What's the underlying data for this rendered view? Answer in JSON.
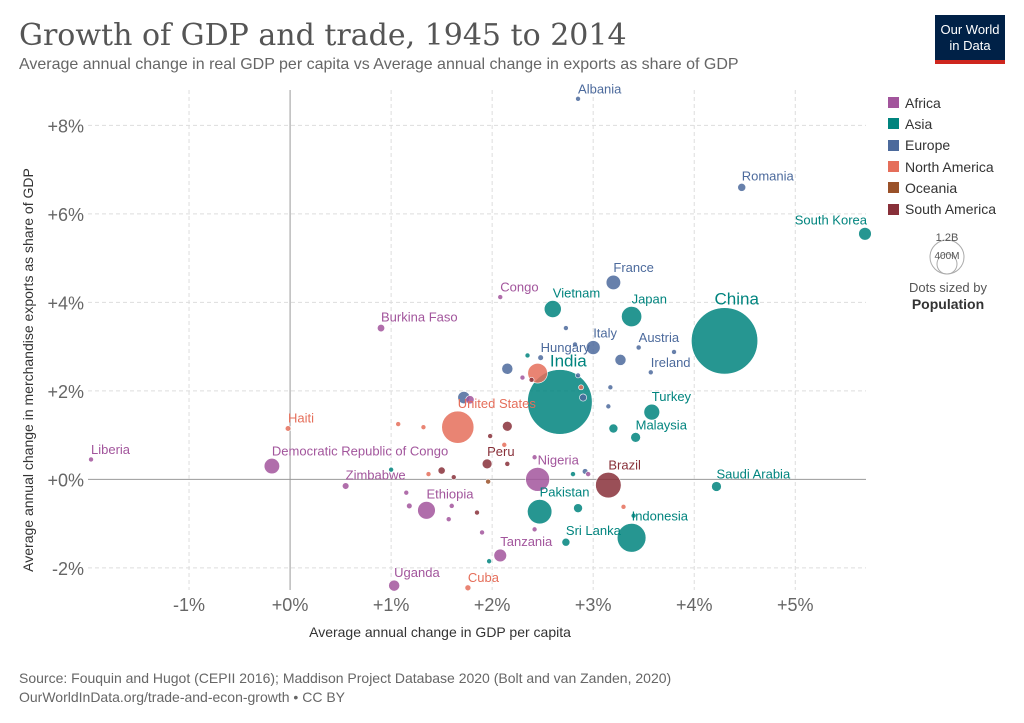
{
  "header": {
    "title": "Growth of GDP and trade, 1945 to 2014",
    "subtitle": "Average annual change in real GDP per capita vs Average annual change in exports as share of GDP",
    "logo_line1": "Our World",
    "logo_line2": "in Data"
  },
  "footer": {
    "source": "Source: Fouquin and Hugot (CEPII 2016); Maddison Project Database 2020 (Bolt and van Zanden, 2020)",
    "url": "OurWorldInData.org/trade-and-econ-growth • CC BY"
  },
  "legend": {
    "regions": [
      {
        "name": "Africa",
        "color": "#a2559c"
      },
      {
        "name": "Asia",
        "color": "#00847e"
      },
      {
        "name": "Europe",
        "color": "#4c6a9c"
      },
      {
        "name": "North America",
        "color": "#e56e5a"
      },
      {
        "name": "Oceania",
        "color": "#9a5129"
      },
      {
        "name": "South America",
        "color": "#883039"
      }
    ],
    "size_big": "1.2B",
    "size_small": "400M",
    "size_note": "Dots sized by",
    "size_key": "Population"
  },
  "chart_data": {
    "type": "scatter",
    "xlabel": "Average annual change in GDP per capita",
    "ylabel": "Average annual change in merchandise exports as share of GDP",
    "xlim": [
      -2.0,
      5.7
    ],
    "ylim": [
      -2.5,
      8.8
    ],
    "xticks": [
      -1,
      0,
      1,
      2,
      3,
      4,
      5
    ],
    "xtick_labels": [
      "-1%",
      "+0%",
      "+1%",
      "+2%",
      "+3%",
      "+4%",
      "+5%"
    ],
    "yticks": [
      -2,
      0,
      2,
      4,
      6,
      8
    ],
    "ytick_labels": [
      "-2%",
      "+0%",
      "+2%",
      "+4%",
      "+6%",
      "+8%"
    ],
    "grid": true,
    "points": [
      {
        "label": "Albania",
        "region": "Europe",
        "x": 2.85,
        "y": 8.6,
        "pop": 3
      },
      {
        "label": "Romania",
        "region": "Europe",
        "x": 4.47,
        "y": 6.6,
        "pop": 20
      },
      {
        "label": "South Korea",
        "region": "Asia",
        "x": 5.69,
        "y": 5.55,
        "pop": 50
      },
      {
        "label": "France",
        "region": "Europe",
        "x": 3.2,
        "y": 4.45,
        "pop": 65
      },
      {
        "label": "Congo",
        "region": "Africa",
        "x": 2.08,
        "y": 4.12,
        "pop": 5
      },
      {
        "label": "Vietnam",
        "region": "Asia",
        "x": 2.6,
        "y": 3.85,
        "pop": 90
      },
      {
        "label": "Japan",
        "region": "Asia",
        "x": 3.38,
        "y": 3.68,
        "pop": 127
      },
      {
        "label": "Burkina Faso",
        "region": "Africa",
        "x": 0.9,
        "y": 3.42,
        "pop": 17
      },
      {
        "label": "China",
        "region": "Asia",
        "x": 4.3,
        "y": 3.13,
        "pop": 1360
      },
      {
        "label": "Italy",
        "region": "Europe",
        "x": 3.0,
        "y": 2.98,
        "pop": 60
      },
      {
        "label": "Austria",
        "region": "Europe",
        "x": 3.45,
        "y": 2.98,
        "pop": 8
      },
      {
        "label": "Hungary",
        "region": "Europe",
        "x": 2.48,
        "y": 2.75,
        "pop": 10
      },
      {
        "label": "Ireland",
        "region": "Europe",
        "x": 3.57,
        "y": 2.42,
        "pop": 4.6
      },
      {
        "label": "India",
        "region": "Asia",
        "x": 2.67,
        "y": 1.75,
        "pop": 1290
      },
      {
        "label": "Turkey",
        "region": "Asia",
        "x": 3.58,
        "y": 1.52,
        "pop": 77
      },
      {
        "label": "United States",
        "region": "North America",
        "x": 1.66,
        "y": 1.18,
        "pop": 320
      },
      {
        "label": "Malaysia",
        "region": "Asia",
        "x": 3.42,
        "y": 0.95,
        "pop": 30
      },
      {
        "label": "Haiti",
        "region": "North America",
        "x": -0.02,
        "y": 1.15,
        "pop": 10
      },
      {
        "label": "Liberia",
        "region": "Africa",
        "x": -1.97,
        "y": 0.45,
        "pop": 4
      },
      {
        "label": "Democratic Republic of Congo",
        "region": "Africa",
        "x": -0.18,
        "y": 0.3,
        "pop": 74
      },
      {
        "label": "Peru",
        "region": "South America",
        "x": 1.95,
        "y": 0.35,
        "pop": 30
      },
      {
        "label": "Nigeria",
        "region": "Africa",
        "x": 2.45,
        "y": 0.0,
        "pop": 177
      },
      {
        "label": "Brazil",
        "region": "South America",
        "x": 3.15,
        "y": -0.13,
        "pop": 202
      },
      {
        "label": "Saudi Arabia",
        "region": "Asia",
        "x": 4.22,
        "y": -0.16,
        "pop": 30
      },
      {
        "label": "Zimbabwe",
        "region": "Africa",
        "x": 0.55,
        "y": -0.15,
        "pop": 14
      },
      {
        "label": "Ethiopia",
        "region": "Africa",
        "x": 1.35,
        "y": -0.7,
        "pop": 97
      },
      {
        "label": "Pakistan",
        "region": "Asia",
        "x": 2.47,
        "y": -0.73,
        "pop": 185
      },
      {
        "label": "Indonesia",
        "region": "Asia",
        "x": 3.38,
        "y": -1.32,
        "pop": 255
      },
      {
        "label": "Sri Lanka",
        "region": "Asia",
        "x": 2.73,
        "y": -1.42,
        "pop": 20
      },
      {
        "label": "Tanzania",
        "region": "Africa",
        "x": 2.08,
        "y": -1.72,
        "pop": 50
      },
      {
        "label": "Uganda",
        "region": "Africa",
        "x": 1.03,
        "y": -2.4,
        "pop": 38
      },
      {
        "label": "Cuba",
        "region": "North America",
        "x": 1.76,
        "y": -2.45,
        "pop": 11
      },
      {
        "label": "",
        "region": "Europe",
        "x": 2.15,
        "y": 2.5,
        "pop": 38
      },
      {
        "label": "",
        "region": "Europe",
        "x": 1.72,
        "y": 1.85,
        "pop": 46
      },
      {
        "label": "",
        "region": "Africa",
        "x": 1.78,
        "y": 1.8,
        "pop": 22
      },
      {
        "label": "",
        "region": "North America",
        "x": 2.45,
        "y": 2.4,
        "pop": 120
      },
      {
        "label": "",
        "region": "South America",
        "x": 2.39,
        "y": 2.25,
        "pop": 7
      },
      {
        "label": "",
        "region": "Africa",
        "x": 2.3,
        "y": 2.3,
        "pop": 3
      },
      {
        "label": "",
        "region": "Europe",
        "x": 2.73,
        "y": 3.42,
        "pop": 4
      },
      {
        "label": "",
        "region": "Europe",
        "x": 2.82,
        "y": 3.05,
        "pop": 3
      },
      {
        "label": "",
        "region": "Europe",
        "x": 3.27,
        "y": 2.7,
        "pop": 38
      },
      {
        "label": "",
        "region": "Europe",
        "x": 3.8,
        "y": 2.88,
        "pop": 5
      },
      {
        "label": "",
        "region": "Asia",
        "x": 2.35,
        "y": 2.8,
        "pop": 5
      },
      {
        "label": "",
        "region": "Europe",
        "x": 2.85,
        "y": 2.35,
        "pop": 4
      },
      {
        "label": "",
        "region": "Europe",
        "x": 2.9,
        "y": 1.85,
        "pop": 16
      },
      {
        "label": "",
        "region": "North America",
        "x": 2.88,
        "y": 2.08,
        "pop": 4
      },
      {
        "label": "",
        "region": "Europe",
        "x": 3.17,
        "y": 2.08,
        "pop": 4
      },
      {
        "label": "",
        "region": "Europe",
        "x": 3.15,
        "y": 1.65,
        "pop": 4
      },
      {
        "label": "",
        "region": "Asia",
        "x": 3.2,
        "y": 1.15,
        "pop": 25
      },
      {
        "label": "",
        "region": "South America",
        "x": 2.15,
        "y": 1.2,
        "pop": 30
      },
      {
        "label": "",
        "region": "North America",
        "x": 1.07,
        "y": 1.25,
        "pop": 4
      },
      {
        "label": "",
        "region": "North America",
        "x": 1.32,
        "y": 1.18,
        "pop": 4
      },
      {
        "label": "",
        "region": "South America",
        "x": 1.98,
        "y": 0.98,
        "pop": 4
      },
      {
        "label": "",
        "region": "North America",
        "x": 2.12,
        "y": 0.78,
        "pop": 4
      },
      {
        "label": "",
        "region": "Asia",
        "x": 1.0,
        "y": 0.22,
        "pop": 4
      },
      {
        "label": "",
        "region": "South America",
        "x": 1.5,
        "y": 0.2,
        "pop": 16
      },
      {
        "label": "",
        "region": "North America",
        "x": 1.37,
        "y": 0.12,
        "pop": 4
      },
      {
        "label": "",
        "region": "South America",
        "x": 1.62,
        "y": 0.05,
        "pop": 4
      },
      {
        "label": "",
        "region": "Oceania",
        "x": 1.96,
        "y": -0.05,
        "pop": 8
      },
      {
        "label": "",
        "region": "South America",
        "x": 2.15,
        "y": 0.35,
        "pop": 8
      },
      {
        "label": "",
        "region": "Africa",
        "x": 2.42,
        "y": 0.5,
        "pop": 4
      },
      {
        "label": "",
        "region": "Asia",
        "x": 2.8,
        "y": 0.12,
        "pop": 8
      },
      {
        "label": "",
        "region": "Europe",
        "x": 2.92,
        "y": 0.18,
        "pop": 10
      },
      {
        "label": "",
        "region": "Africa",
        "x": 2.95,
        "y": 0.12,
        "pop": 8
      },
      {
        "label": "",
        "region": "Africa",
        "x": 1.15,
        "y": -0.3,
        "pop": 5
      },
      {
        "label": "",
        "region": "Africa",
        "x": 1.18,
        "y": -0.6,
        "pop": 10
      },
      {
        "label": "",
        "region": "Africa",
        "x": 1.6,
        "y": -0.6,
        "pop": 8
      },
      {
        "label": "",
        "region": "Africa",
        "x": 1.57,
        "y": -0.9,
        "pop": 6
      },
      {
        "label": "",
        "region": "South America",
        "x": 1.85,
        "y": -0.75,
        "pop": 4
      },
      {
        "label": "",
        "region": "Asia",
        "x": 2.85,
        "y": -0.65,
        "pop": 25
      },
      {
        "label": "",
        "region": "North America",
        "x": 3.3,
        "y": -0.62,
        "pop": 4
      },
      {
        "label": "",
        "region": "Asia",
        "x": 3.4,
        "y": -0.82,
        "pop": 4
      },
      {
        "label": "",
        "region": "Africa",
        "x": 1.9,
        "y": -1.2,
        "pop": 4
      },
      {
        "label": "",
        "region": "Africa",
        "x": 2.42,
        "y": -1.13,
        "pop": 4
      },
      {
        "label": "",
        "region": "Asia",
        "x": 1.97,
        "y": -1.85,
        "pop": 4
      }
    ]
  }
}
